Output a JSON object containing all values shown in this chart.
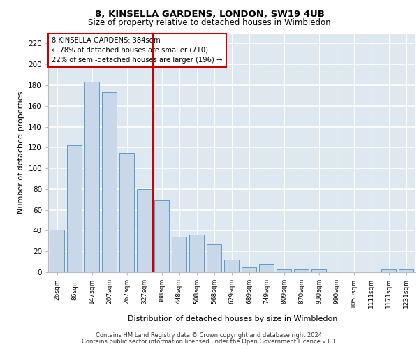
{
  "title": "8, KINSELLA GARDENS, LONDON, SW19 4UB",
  "subtitle": "Size of property relative to detached houses in Wimbledon",
  "xlabel": "Distribution of detached houses by size in Wimbledon",
  "ylabel": "Number of detached properties",
  "footer1": "Contains HM Land Registry data © Crown copyright and database right 2024.",
  "footer2": "Contains public sector information licensed under the Open Government Licence v3.0.",
  "property_label": "8 KINSELLA GARDENS: 384sqm",
  "annotation_line1": "← 78% of detached houses are smaller (710)",
  "annotation_line2": "22% of semi-detached houses are larger (196) →",
  "bar_color": "#c8d8e8",
  "bar_edge_color": "#5090c0",
  "vline_color": "#cc0000",
  "annotation_box_color": "#cc0000",
  "bg_color": "#dde8f0",
  "categories": [
    "26sqm",
    "86sqm",
    "147sqm",
    "207sqm",
    "267sqm",
    "327sqm",
    "388sqm",
    "448sqm",
    "508sqm",
    "568sqm",
    "629sqm",
    "689sqm",
    "749sqm",
    "809sqm",
    "870sqm",
    "930sqm",
    "990sqm",
    "1050sqm",
    "1111sqm",
    "1171sqm",
    "1231sqm"
  ],
  "values": [
    41,
    122,
    183,
    173,
    115,
    80,
    69,
    34,
    36,
    27,
    12,
    5,
    8,
    3,
    3,
    3,
    0,
    0,
    0,
    3,
    3
  ],
  "vline_x_index": 6,
  "ylim": [
    0,
    230
  ],
  "yticks": [
    0,
    20,
    40,
    60,
    80,
    100,
    120,
    140,
    160,
    180,
    200,
    220
  ]
}
